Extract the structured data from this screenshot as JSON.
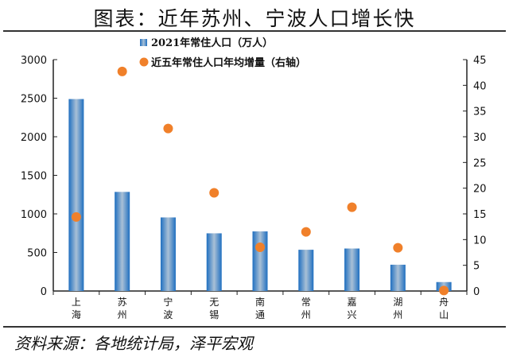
{
  "title": "图表：近年苏州、宁波人口增长快",
  "source": "资料来源：各地统计局，泽平宏观",
  "chart_data": {
    "type": "bar",
    "categories": [
      "上海",
      "苏州",
      "宁波",
      "无锡",
      "南通",
      "常州",
      "嘉兴",
      "湖州",
      "舟山"
    ],
    "series": [
      {
        "name": "2021年常住人口（万人）",
        "type": "bar",
        "axis": "left",
        "color": "#4a8cc8",
        "values": [
          2489,
          1285,
          954,
          748,
          773,
          535,
          551,
          341,
          116
        ]
      },
      {
        "name": "近五年常住人口年均增量（右轴）",
        "type": "scatter",
        "axis": "right",
        "color": "#f0802a",
        "values": [
          14.4,
          42.7,
          31.6,
          19.1,
          8.5,
          11.5,
          16.3,
          8.4,
          0.1
        ]
      }
    ],
    "ylim_left": [
      0,
      3000
    ],
    "yticks_left": [
      0,
      500,
      1000,
      1500,
      2000,
      2500,
      3000
    ],
    "ylim_right": [
      0,
      45
    ],
    "yticks_right": [
      0,
      5,
      10,
      15,
      20,
      25,
      30,
      35,
      40,
      45
    ],
    "grid": false,
    "legend": "top-center"
  }
}
